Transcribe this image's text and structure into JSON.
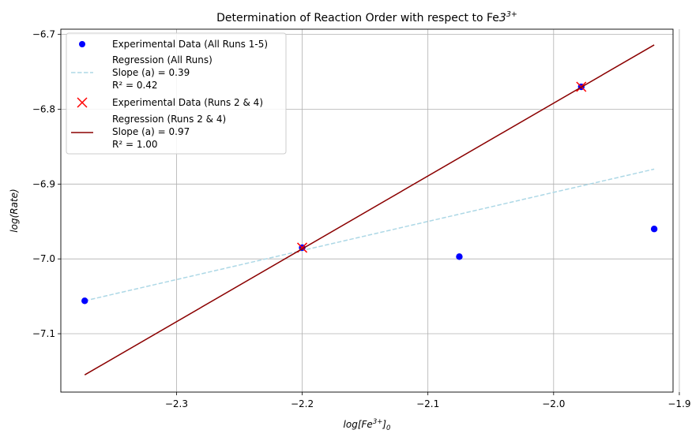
{
  "chart_data": {
    "type": "scatter",
    "title": "Determination of Reaction Order with respect to Fe",
    "title_superscript": "3+",
    "xlabel": {
      "base": "log[Fe",
      "sup": "3+",
      "close": "]",
      "sub": "0"
    },
    "ylabel": "log(Rate)",
    "xlim": [
      -2.392,
      -1.905
    ],
    "ylim": [
      -7.178,
      -6.693
    ],
    "xticks": [
      -2.3,
      -2.2,
      -2.1,
      -2.0,
      -1.9
    ],
    "xtick_labels": [
      "−2.3",
      "−2.2",
      "−2.1",
      "−2.0",
      "−1.9"
    ],
    "yticks": [
      -6.7,
      -6.8,
      -6.9,
      -7.0,
      -7.1
    ],
    "ytick_labels": [
      "−6.7",
      "−6.8",
      "−6.9",
      "−7.0",
      "−7.1"
    ],
    "grid": true,
    "legend_position": "top-left",
    "series": [
      {
        "name": "Experimental Data (All Runs 1-5)",
        "kind": "scatter",
        "marker": "circle",
        "color": "#0000ff",
        "points": [
          [
            -2.373,
            -7.056
          ],
          [
            -2.2,
            -6.985
          ],
          [
            -2.075,
            -6.997
          ],
          [
            -1.978,
            -6.77
          ],
          [
            -1.92,
            -6.96
          ]
        ]
      },
      {
        "name": "Regression (All Runs)",
        "stats": [
          "Slope (a) = 0.39",
          "R² = 0.42"
        ],
        "kind": "line",
        "dash": true,
        "color": "#add8e6",
        "points": [
          [
            -2.373,
            -7.056
          ],
          [
            -1.92,
            -6.88
          ]
        ]
      },
      {
        "name": "Experimental Data (Runs 2 & 4)",
        "kind": "scatter",
        "marker": "x",
        "color": "#ff0000",
        "points": [
          [
            -2.2,
            -6.985
          ],
          [
            -1.978,
            -6.77
          ]
        ]
      },
      {
        "name": "Regression (Runs 2 & 4)",
        "stats": [
          "Slope (a) = 0.97",
          "R² = 1.00"
        ],
        "kind": "line",
        "dash": false,
        "color": "#8b0000",
        "points": [
          [
            -2.373,
            -7.155
          ],
          [
            -1.92,
            -6.714
          ]
        ]
      }
    ]
  }
}
